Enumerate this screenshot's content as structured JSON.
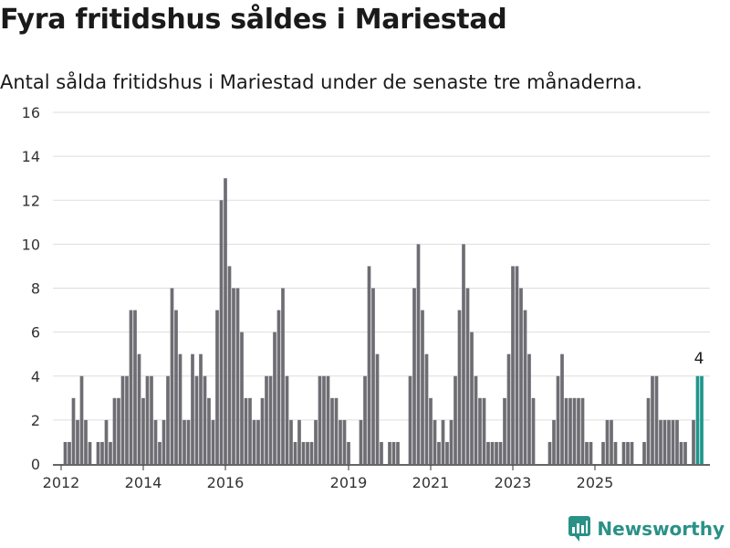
{
  "title": "Fyra fritidshus såldes i Mariestad",
  "subtitle": "Antal sålda fritidshus i Mariestad under de senaste tre månaderna.",
  "brand": {
    "name": "Newsworthy",
    "color": "#2a9187"
  },
  "colors": {
    "bar": "#6e6d73",
    "highlight": "#1f968b",
    "grid": "#dddddd",
    "axis": "#333333"
  },
  "chart_data": {
    "type": "bar",
    "ylim": [
      0,
      16
    ],
    "yticks": [
      0,
      2,
      4,
      6,
      8,
      10,
      12,
      14,
      16
    ],
    "xtick_labels": [
      "2012",
      "2014",
      "2016",
      "2019",
      "2021",
      "2023",
      "2025"
    ],
    "xtick_positions": [
      2012,
      2014,
      2016,
      2019,
      2021,
      2023,
      2025
    ],
    "highlight_label": "4",
    "bars": [
      {
        "x": 2012.1,
        "y": 1
      },
      {
        "x": 2012.2,
        "y": 1
      },
      {
        "x": 2012.3,
        "y": 3
      },
      {
        "x": 2012.4,
        "y": 2
      },
      {
        "x": 2012.5,
        "y": 4
      },
      {
        "x": 2012.6,
        "y": 2
      },
      {
        "x": 2012.7,
        "y": 1
      },
      {
        "x": 2012.9,
        "y": 1
      },
      {
        "x": 2013.0,
        "y": 1
      },
      {
        "x": 2013.1,
        "y": 2
      },
      {
        "x": 2013.2,
        "y": 1
      },
      {
        "x": 2013.3,
        "y": 3
      },
      {
        "x": 2013.4,
        "y": 3
      },
      {
        "x": 2013.5,
        "y": 4
      },
      {
        "x": 2013.6,
        "y": 4
      },
      {
        "x": 2013.7,
        "y": 7
      },
      {
        "x": 2013.8,
        "y": 7
      },
      {
        "x": 2013.9,
        "y": 5
      },
      {
        "x": 2014.0,
        "y": 3
      },
      {
        "x": 2014.1,
        "y": 4
      },
      {
        "x": 2014.2,
        "y": 4
      },
      {
        "x": 2014.3,
        "y": 2
      },
      {
        "x": 2014.4,
        "y": 1
      },
      {
        "x": 2014.5,
        "y": 2
      },
      {
        "x": 2014.6,
        "y": 4
      },
      {
        "x": 2014.7,
        "y": 8
      },
      {
        "x": 2014.8,
        "y": 7
      },
      {
        "x": 2014.9,
        "y": 5
      },
      {
        "x": 2015.0,
        "y": 2
      },
      {
        "x": 2015.1,
        "y": 2
      },
      {
        "x": 2015.2,
        "y": 5
      },
      {
        "x": 2015.3,
        "y": 4
      },
      {
        "x": 2015.4,
        "y": 5
      },
      {
        "x": 2015.5,
        "y": 4
      },
      {
        "x": 2015.6,
        "y": 3
      },
      {
        "x": 2015.7,
        "y": 2
      },
      {
        "x": 2015.8,
        "y": 7
      },
      {
        "x": 2015.9,
        "y": 12
      },
      {
        "x": 2016.0,
        "y": 13
      },
      {
        "x": 2016.1,
        "y": 9
      },
      {
        "x": 2016.2,
        "y": 8
      },
      {
        "x": 2016.3,
        "y": 8
      },
      {
        "x": 2016.4,
        "y": 6
      },
      {
        "x": 2016.5,
        "y": 3
      },
      {
        "x": 2016.6,
        "y": 3
      },
      {
        "x": 2016.7,
        "y": 2
      },
      {
        "x": 2016.8,
        "y": 2
      },
      {
        "x": 2016.9,
        "y": 3
      },
      {
        "x": 2017.0,
        "y": 4
      },
      {
        "x": 2017.1,
        "y": 4
      },
      {
        "x": 2017.2,
        "y": 6
      },
      {
        "x": 2017.3,
        "y": 7
      },
      {
        "x": 2017.4,
        "y": 8
      },
      {
        "x": 2017.5,
        "y": 4
      },
      {
        "x": 2017.6,
        "y": 2
      },
      {
        "x": 2017.7,
        "y": 1
      },
      {
        "x": 2017.8,
        "y": 2
      },
      {
        "x": 2017.9,
        "y": 1
      },
      {
        "x": 2018.0,
        "y": 1
      },
      {
        "x": 2018.1,
        "y": 1
      },
      {
        "x": 2018.2,
        "y": 2
      },
      {
        "x": 2018.3,
        "y": 4
      },
      {
        "x": 2018.4,
        "y": 4
      },
      {
        "x": 2018.5,
        "y": 4
      },
      {
        "x": 2018.6,
        "y": 3
      },
      {
        "x": 2018.7,
        "y": 3
      },
      {
        "x": 2018.8,
        "y": 2
      },
      {
        "x": 2018.9,
        "y": 2
      },
      {
        "x": 2019.0,
        "y": 1
      },
      {
        "x": 2019.3,
        "y": 2
      },
      {
        "x": 2019.4,
        "y": 4
      },
      {
        "x": 2019.5,
        "y": 9
      },
      {
        "x": 2019.6,
        "y": 8
      },
      {
        "x": 2019.7,
        "y": 5
      },
      {
        "x": 2019.8,
        "y": 1
      },
      {
        "x": 2020.0,
        "y": 1
      },
      {
        "x": 2020.1,
        "y": 1
      },
      {
        "x": 2020.2,
        "y": 1
      },
      {
        "x": 2020.5,
        "y": 4
      },
      {
        "x": 2020.6,
        "y": 8
      },
      {
        "x": 2020.7,
        "y": 10
      },
      {
        "x": 2020.8,
        "y": 7
      },
      {
        "x": 2020.9,
        "y": 5
      },
      {
        "x": 2021.0,
        "y": 3
      },
      {
        "x": 2021.1,
        "y": 2
      },
      {
        "x": 2021.2,
        "y": 1
      },
      {
        "x": 2021.3,
        "y": 2
      },
      {
        "x": 2021.4,
        "y": 1
      },
      {
        "x": 2021.5,
        "y": 2
      },
      {
        "x": 2021.6,
        "y": 4
      },
      {
        "x": 2021.7,
        "y": 7
      },
      {
        "x": 2021.8,
        "y": 10
      },
      {
        "x": 2021.9,
        "y": 8
      },
      {
        "x": 2022.0,
        "y": 6
      },
      {
        "x": 2022.1,
        "y": 4
      },
      {
        "x": 2022.2,
        "y": 3
      },
      {
        "x": 2022.3,
        "y": 3
      },
      {
        "x": 2022.4,
        "y": 1
      },
      {
        "x": 2022.5,
        "y": 1
      },
      {
        "x": 2022.6,
        "y": 1
      },
      {
        "x": 2022.7,
        "y": 1
      },
      {
        "x": 2022.8,
        "y": 3
      },
      {
        "x": 2022.9,
        "y": 5
      },
      {
        "x": 2023.0,
        "y": 9
      },
      {
        "x": 2023.1,
        "y": 9
      },
      {
        "x": 2023.2,
        "y": 8
      },
      {
        "x": 2023.3,
        "y": 7
      },
      {
        "x": 2023.4,
        "y": 5
      },
      {
        "x": 2023.5,
        "y": 3
      },
      {
        "x": 2023.9,
        "y": 1
      },
      {
        "x": 2024.0,
        "y": 2
      },
      {
        "x": 2024.1,
        "y": 4
      },
      {
        "x": 2024.2,
        "y": 5
      },
      {
        "x": 2024.3,
        "y": 3
      },
      {
        "x": 2024.4,
        "y": 3
      },
      {
        "x": 2024.5,
        "y": 3
      },
      {
        "x": 2024.6,
        "y": 3
      },
      {
        "x": 2024.7,
        "y": 3
      },
      {
        "x": 2024.8,
        "y": 1
      },
      {
        "x": 2024.9,
        "y": 1
      },
      {
        "x": 2025.2,
        "y": 1
      },
      {
        "x": 2025.3,
        "y": 2
      },
      {
        "x": 2025.4,
        "y": 2
      },
      {
        "x": 2025.5,
        "y": 1
      },
      {
        "x": 2025.7,
        "y": 1
      },
      {
        "x": 2025.8,
        "y": 1
      },
      {
        "x": 2025.9,
        "y": 1
      },
      {
        "x": 2026.2,
        "y": 1
      },
      {
        "x": 2026.3,
        "y": 3
      },
      {
        "x": 2026.4,
        "y": 4
      },
      {
        "x": 2026.5,
        "y": 4
      },
      {
        "x": 2026.6,
        "y": 2
      },
      {
        "x": 2026.7,
        "y": 2
      },
      {
        "x": 2026.8,
        "y": 2
      },
      {
        "x": 2026.9,
        "y": 2
      },
      {
        "x": 2027.0,
        "y": 2
      },
      {
        "x": 2027.1,
        "y": 1
      },
      {
        "x": 2027.2,
        "y": 1
      },
      {
        "x": 2027.4,
        "y": 2
      },
      {
        "x": 2027.5,
        "y": 4,
        "highlight": true
      },
      {
        "x": 2027.6,
        "y": 4,
        "highlight": true
      }
    ]
  }
}
